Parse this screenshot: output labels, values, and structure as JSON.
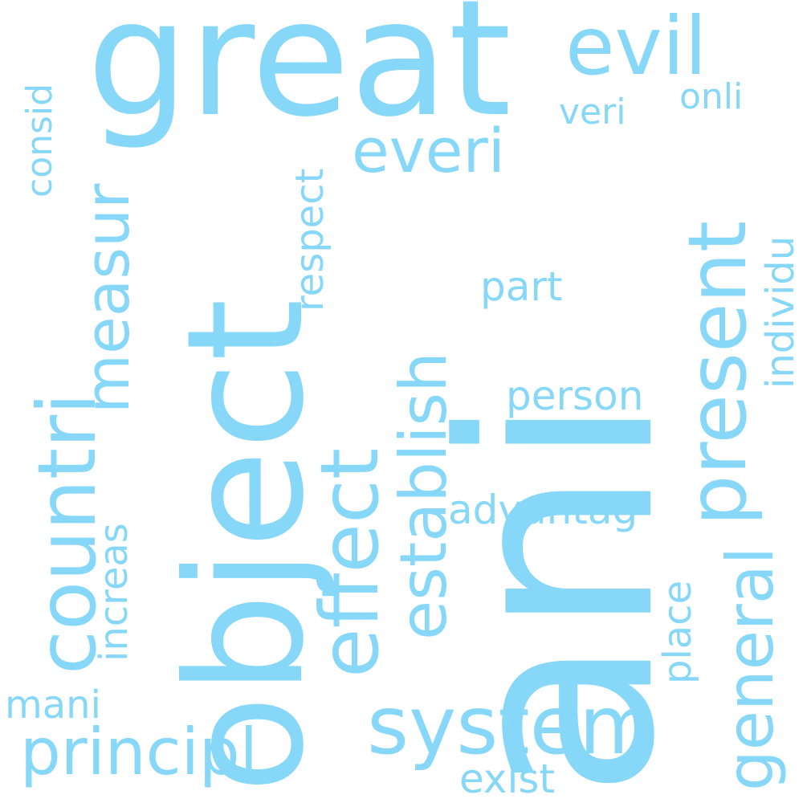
{
  "cloud": {
    "color": "#87d7f9",
    "background": "#ffffff",
    "words": {
      "ani": "ani",
      "great": "great",
      "object": "object",
      "evil": "evil",
      "system": "system",
      "present": "present",
      "effect": "effect",
      "countri": "countri",
      "establish": "establish",
      "principl": "principl",
      "general": "general",
      "measur": "measur",
      "everi": "everi",
      "advantag": "advantag",
      "person": "person",
      "respect": "respect",
      "increas": "increas",
      "individu": "individu",
      "part": "part",
      "place": "place",
      "exist": "exist",
      "mani": "mani",
      "consid": "consid",
      "veri": "veri",
      "onli": "onli"
    }
  }
}
